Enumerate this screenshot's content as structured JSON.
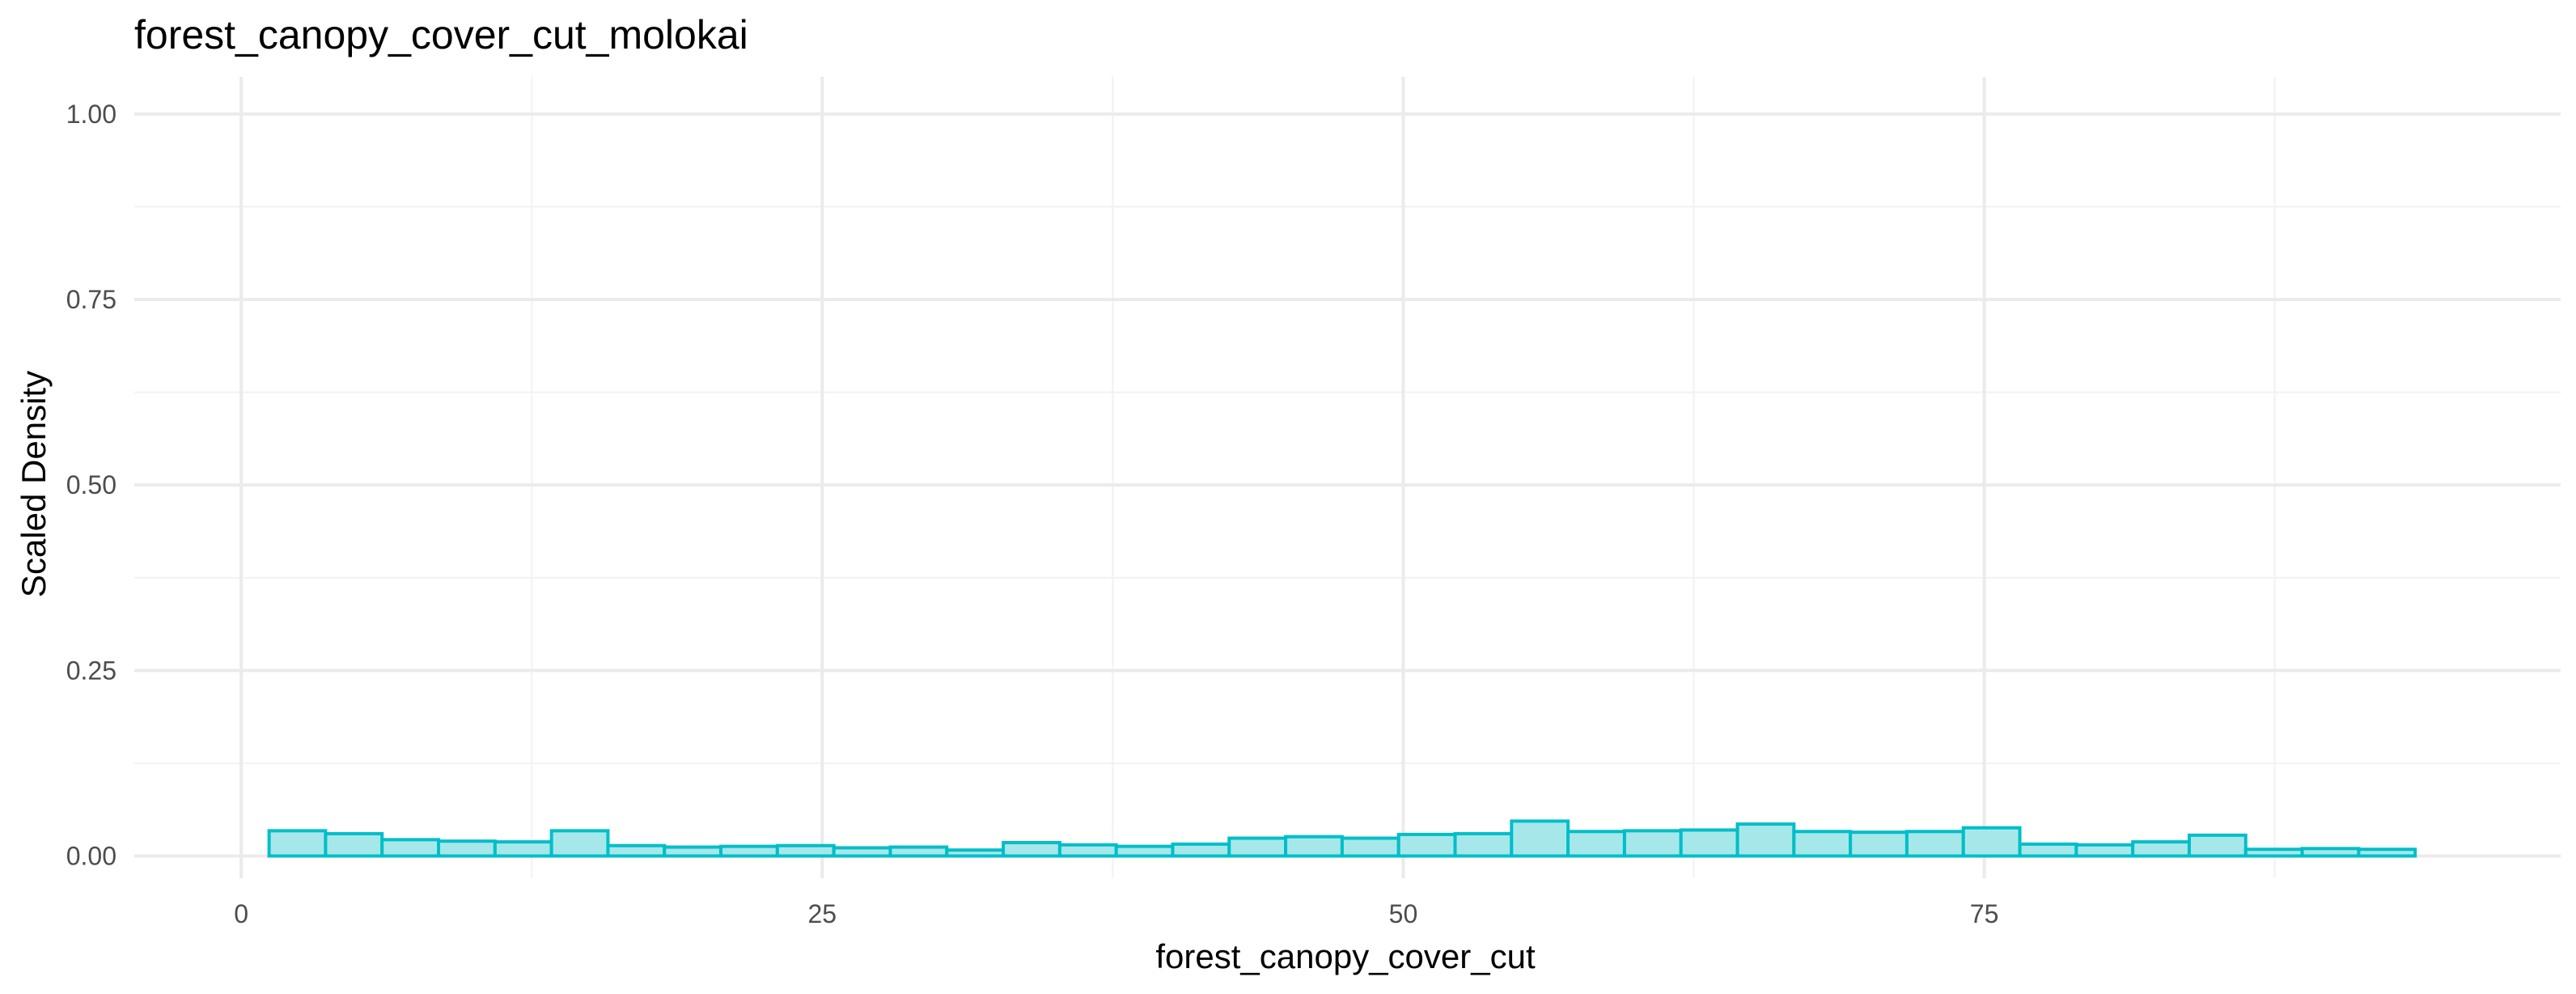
{
  "chart_data": {
    "type": "histogram",
    "title": "forest_canopy_cover_cut_molokai",
    "xlabel": "forest_canopy_cover_cut",
    "ylabel": "Scaled Density",
    "xlim": [
      -4.6,
      99.8
    ],
    "ylim": [
      -0.03,
      1.05
    ],
    "x_ticks": [
      0,
      25,
      50,
      75
    ],
    "x_tick_labels": [
      "0",
      "25",
      "50",
      "75"
    ],
    "y_ticks": [
      0.0,
      0.25,
      0.5,
      0.75,
      1.0
    ],
    "y_tick_labels": [
      "0.00",
      "0.25",
      "0.50",
      "0.75",
      "1.00"
    ],
    "grid": true,
    "legend": "none",
    "bin_width": 2.43,
    "first_bin_start": 1.2,
    "values": [
      0.034,
      0.03,
      0.022,
      0.02,
      0.019,
      0.034,
      0.014,
      0.012,
      0.013,
      0.014,
      0.011,
      0.012,
      0.008,
      0.018,
      0.015,
      0.013,
      0.016,
      0.024,
      0.026,
      0.024,
      0.029,
      0.03,
      0.047,
      0.033,
      0.034,
      0.035,
      0.043,
      0.033,
      0.032,
      0.033,
      0.038,
      0.016,
      0.015,
      0.019,
      0.028,
      0.009,
      0.01,
      0.009
    ],
    "colors": {
      "fill": "#a6e8ea",
      "stroke": "#00bec8"
    }
  }
}
